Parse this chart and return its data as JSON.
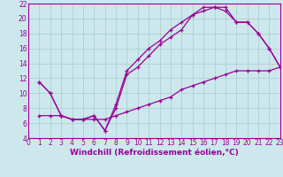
{
  "bg_color": "#cce8ed",
  "grid_color": "#aacccc",
  "line_color": "#990099",
  "xlabel": "Windchill (Refroidissement éolien,°C)",
  "xlim": [
    0,
    23
  ],
  "ylim": [
    4,
    22
  ],
  "xticks": [
    0,
    1,
    2,
    3,
    4,
    5,
    6,
    7,
    8,
    9,
    10,
    11,
    12,
    13,
    14,
    15,
    16,
    17,
    18,
    19,
    20,
    21,
    22,
    23
  ],
  "yticks": [
    4,
    6,
    8,
    10,
    12,
    14,
    16,
    18,
    20,
    22
  ],
  "line1_x": [
    1,
    2,
    3,
    4,
    5,
    6,
    7,
    8,
    9,
    10,
    11,
    12,
    13,
    14,
    15,
    16,
    17,
    18,
    19,
    20,
    21,
    22,
    23
  ],
  "line1_y": [
    7.0,
    7.0,
    7.0,
    6.5,
    6.5,
    6.5,
    6.5,
    7.0,
    7.5,
    8.0,
    8.5,
    9.0,
    9.5,
    10.5,
    11.0,
    11.5,
    12.0,
    12.5,
    13.0,
    13.0,
    13.0,
    13.0,
    13.5
  ],
  "line2_x": [
    1,
    2,
    3,
    4,
    5,
    6,
    7,
    8,
    9,
    10,
    11,
    12,
    13,
    14,
    15,
    16,
    17,
    18,
    19,
    20,
    21,
    22,
    23
  ],
  "line2_y": [
    11.5,
    10.0,
    7.0,
    6.5,
    6.5,
    7.0,
    5.0,
    8.0,
    12.5,
    13.5,
    15.0,
    16.5,
    17.5,
    18.5,
    20.5,
    21.0,
    21.5,
    21.5,
    19.5,
    19.5,
    18.0,
    16.0,
    13.5
  ],
  "line3_x": [
    1,
    2,
    3,
    4,
    5,
    6,
    7,
    8,
    9,
    10,
    11,
    12,
    13,
    14,
    15,
    16,
    17,
    18,
    19,
    20,
    21,
    22,
    23
  ],
  "line3_y": [
    11.5,
    10.0,
    7.0,
    6.5,
    6.5,
    7.0,
    5.0,
    8.5,
    13.0,
    14.5,
    16.0,
    17.0,
    18.5,
    19.5,
    20.5,
    21.5,
    21.5,
    21.0,
    19.5,
    19.5,
    18.0,
    16.0,
    13.5
  ],
  "xlabel_fontsize": 6.5,
  "tick_fontsize": 5.5
}
